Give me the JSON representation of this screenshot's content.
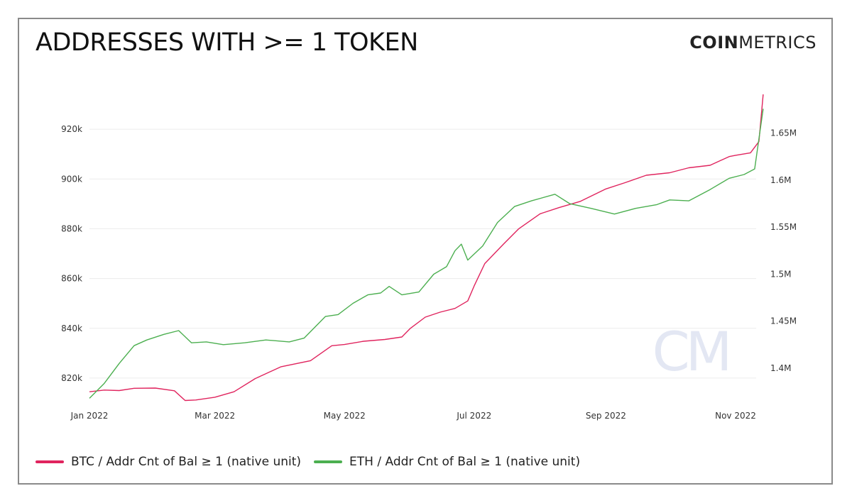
{
  "title": "ADDRESSES WITH >= 1 TOKEN",
  "brand": {
    "bold": "COIN",
    "light": "METRICS"
  },
  "watermark": "CM",
  "chart_data": {
    "type": "line",
    "x_ticks": [
      "Jan 2022",
      "Mar 2022",
      "May 2022",
      "Jul 2022",
      "Sep 2022",
      "Nov 2022"
    ],
    "x_tick_dates": [
      "2022-01-01",
      "2022-03-01",
      "2022-05-01",
      "2022-07-01",
      "2022-09-01",
      "2022-11-01"
    ],
    "y_left": {
      "ticks": [
        "820k",
        "840k",
        "860k",
        "880k",
        "900k",
        "920k"
      ],
      "tick_values": [
        820000,
        840000,
        860000,
        880000,
        900000,
        920000
      ],
      "range": [
        810000,
        932000
      ]
    },
    "y_right": {
      "ticks": [
        "1.4M",
        "1.45M",
        "1.5M",
        "1.55M",
        "1.6M",
        "1.65M"
      ],
      "tick_values": [
        1400000,
        1450000,
        1500000,
        1550000,
        1600000,
        1650000
      ],
      "range": [
        1363000,
        1686000
      ]
    },
    "grid": true,
    "legend_position": "bottom-left",
    "series": [
      {
        "name": "BTC / Addr Cnt of Bal ≥ 1 (native unit)",
        "color": "#e0245e",
        "axis": "left",
        "points": [
          [
            "2022-01-01",
            814500
          ],
          [
            "2022-01-08",
            815200
          ],
          [
            "2022-01-15",
            815000
          ],
          [
            "2022-01-22",
            815900
          ],
          [
            "2022-02-01",
            816000
          ],
          [
            "2022-02-10",
            814900
          ],
          [
            "2022-02-15",
            811000
          ],
          [
            "2022-02-20",
            811200
          ],
          [
            "2022-03-01",
            812300
          ],
          [
            "2022-03-10",
            814500
          ],
          [
            "2022-03-20",
            819800
          ],
          [
            "2022-04-01",
            824500
          ],
          [
            "2022-04-15",
            827000
          ],
          [
            "2022-04-25",
            833000
          ],
          [
            "2022-05-01",
            833500
          ],
          [
            "2022-05-10",
            834800
          ],
          [
            "2022-05-20",
            835500
          ],
          [
            "2022-05-28",
            836500
          ],
          [
            "2022-06-01",
            840000
          ],
          [
            "2022-06-08",
            844500
          ],
          [
            "2022-06-15",
            846500
          ],
          [
            "2022-06-22",
            848000
          ],
          [
            "2022-06-28",
            851000
          ],
          [
            "2022-07-01",
            857000
          ],
          [
            "2022-07-06",
            866000
          ],
          [
            "2022-07-15",
            874000
          ],
          [
            "2022-07-22",
            880000
          ],
          [
            "2022-08-01",
            886000
          ],
          [
            "2022-08-10",
            888500
          ],
          [
            "2022-08-20",
            891000
          ],
          [
            "2022-09-01",
            896000
          ],
          [
            "2022-09-10",
            898500
          ],
          [
            "2022-09-20",
            901500
          ],
          [
            "2022-10-01",
            902500
          ],
          [
            "2022-10-10",
            904500
          ],
          [
            "2022-10-20",
            905500
          ],
          [
            "2022-10-29",
            909000
          ],
          [
            "2022-11-01",
            909500
          ],
          [
            "2022-11-08",
            910500
          ],
          [
            "2022-11-12",
            915000
          ],
          [
            "2022-11-14",
            934000
          ]
        ]
      },
      {
        "name": "ETH / Addr Cnt of Bal ≥ 1 (native unit)",
        "color": "#4caf50",
        "axis": "right",
        "points": [
          [
            "2022-01-01",
            1368000
          ],
          [
            "2022-01-08",
            1384000
          ],
          [
            "2022-01-15",
            1405000
          ],
          [
            "2022-01-22",
            1424000
          ],
          [
            "2022-01-28",
            1430000
          ],
          [
            "2022-02-05",
            1436000
          ],
          [
            "2022-02-12",
            1440000
          ],
          [
            "2022-02-18",
            1427000
          ],
          [
            "2022-02-25",
            1428000
          ],
          [
            "2022-03-05",
            1425000
          ],
          [
            "2022-03-15",
            1427000
          ],
          [
            "2022-03-25",
            1430000
          ],
          [
            "2022-04-05",
            1428000
          ],
          [
            "2022-04-12",
            1432000
          ],
          [
            "2022-04-22",
            1455000
          ],
          [
            "2022-04-28",
            1457000
          ],
          [
            "2022-05-05",
            1469000
          ],
          [
            "2022-05-12",
            1478000
          ],
          [
            "2022-05-18",
            1480000
          ],
          [
            "2022-05-22",
            1487000
          ],
          [
            "2022-05-28",
            1478000
          ],
          [
            "2022-06-05",
            1481000
          ],
          [
            "2022-06-12",
            1500000
          ],
          [
            "2022-06-18",
            1508000
          ],
          [
            "2022-06-22",
            1525000
          ],
          [
            "2022-06-25",
            1532000
          ],
          [
            "2022-06-28",
            1515000
          ],
          [
            "2022-07-05",
            1530000
          ],
          [
            "2022-07-12",
            1555000
          ],
          [
            "2022-07-20",
            1572000
          ],
          [
            "2022-07-28",
            1578000
          ],
          [
            "2022-08-08",
            1585000
          ],
          [
            "2022-08-15",
            1575000
          ],
          [
            "2022-08-25",
            1570000
          ],
          [
            "2022-09-05",
            1564000
          ],
          [
            "2022-09-15",
            1570000
          ],
          [
            "2022-09-25",
            1574000
          ],
          [
            "2022-10-01",
            1579000
          ],
          [
            "2022-10-10",
            1578000
          ],
          [
            "2022-10-20",
            1590000
          ],
          [
            "2022-10-29",
            1602000
          ],
          [
            "2022-11-05",
            1606000
          ],
          [
            "2022-11-10",
            1612000
          ],
          [
            "2022-11-14",
            1676000
          ]
        ]
      }
    ]
  }
}
